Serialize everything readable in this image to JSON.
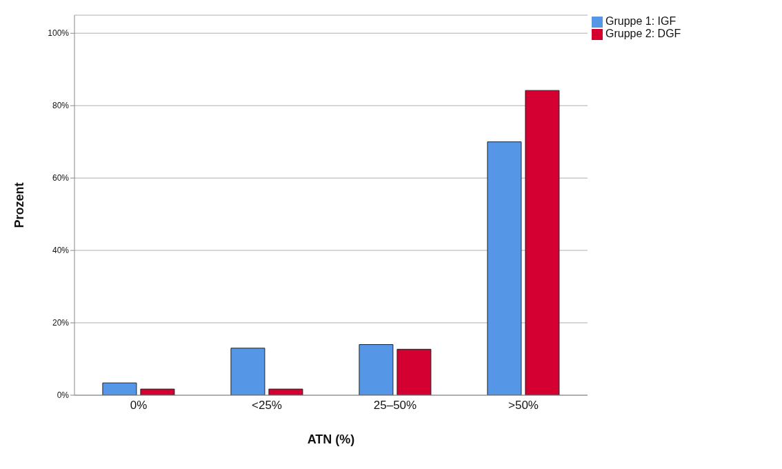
{
  "chart_data": {
    "type": "bar",
    "xlabel": "ATN (%)",
    "ylabel": "Prozent",
    "categories": [
      "0%",
      "<25%",
      "25–50%",
      ">50%"
    ],
    "series": [
      {
        "name": "Gruppe 1: IGF",
        "color": "#5596e6",
        "values": [
          3.4,
          13,
          14,
          70
        ]
      },
      {
        "name": "Gruppe 2: DGF",
        "color": "#d50032",
        "values": [
          1.7,
          1.7,
          12.7,
          84.2
        ]
      }
    ],
    "ylim": [
      0,
      105
    ],
    "yticks": [
      {
        "value": 0,
        "label": "0%"
      },
      {
        "value": 20,
        "label": "20%"
      },
      {
        "value": 40,
        "label": "40%"
      },
      {
        "value": 60,
        "label": "60%"
      },
      {
        "value": 80,
        "label": "80%"
      },
      {
        "value": 100,
        "label": "100%"
      }
    ],
    "grid": "y",
    "legend": "top right"
  }
}
